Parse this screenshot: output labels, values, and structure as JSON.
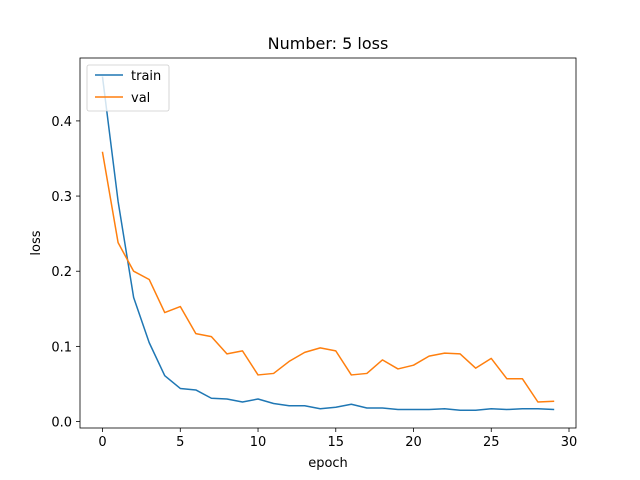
{
  "chart_data": {
    "type": "line",
    "title": "Number: 5 loss",
    "xlabel": "epoch",
    "ylabel": "loss",
    "xlim": [
      -1.45,
      30.45
    ],
    "ylim": [
      -0.0086,
      0.4837
    ],
    "xticks": [
      0,
      5,
      10,
      15,
      20,
      25,
      30
    ],
    "yticks": [
      0.0,
      0.1,
      0.2,
      0.3,
      0.4
    ],
    "grid": false,
    "legend": "upper-left",
    "x": [
      0,
      1,
      2,
      3,
      4,
      5,
      6,
      7,
      8,
      9,
      10,
      11,
      12,
      13,
      14,
      15,
      16,
      17,
      18,
      19,
      20,
      21,
      22,
      23,
      24,
      25,
      26,
      27,
      28,
      29
    ],
    "series": [
      {
        "name": "train",
        "color": "#1f77b4",
        "values": [
          0.458,
          0.293,
          0.165,
          0.105,
          0.061,
          0.044,
          0.042,
          0.031,
          0.03,
          0.026,
          0.03,
          0.024,
          0.021,
          0.021,
          0.017,
          0.019,
          0.023,
          0.018,
          0.018,
          0.016,
          0.016,
          0.016,
          0.017,
          0.015,
          0.015,
          0.017,
          0.016,
          0.017,
          0.017,
          0.016
        ]
      },
      {
        "name": "val",
        "color": "#ff7f0e",
        "values": [
          0.358,
          0.238,
          0.2,
          0.189,
          0.145,
          0.153,
          0.117,
          0.113,
          0.09,
          0.094,
          0.062,
          0.064,
          0.08,
          0.092,
          0.098,
          0.094,
          0.062,
          0.064,
          0.082,
          0.07,
          0.075,
          0.087,
          0.091,
          0.09,
          0.071,
          0.084,
          0.057,
          0.057,
          0.026,
          0.027
        ]
      }
    ]
  }
}
